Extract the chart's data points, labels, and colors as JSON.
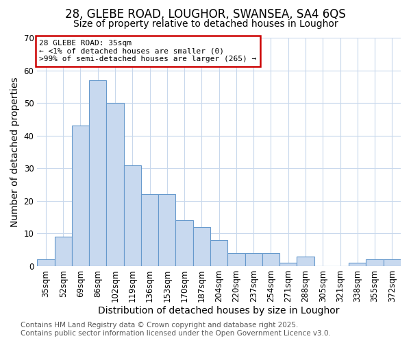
{
  "title1": "28, GLEBE ROAD, LOUGHOR, SWANSEA, SA4 6QS",
  "title2": "Size of property relative to detached houses in Loughor",
  "xlabel": "Distribution of detached houses by size in Loughor",
  "ylabel": "Number of detached properties",
  "categories": [
    "35sqm",
    "52sqm",
    "69sqm",
    "86sqm",
    "102sqm",
    "119sqm",
    "136sqm",
    "153sqm",
    "170sqm",
    "187sqm",
    "204sqm",
    "220sqm",
    "237sqm",
    "254sqm",
    "271sqm",
    "288sqm",
    "305sqm",
    "321sqm",
    "338sqm",
    "355sqm",
    "372sqm"
  ],
  "values": [
    2,
    9,
    43,
    57,
    50,
    31,
    22,
    22,
    14,
    12,
    8,
    4,
    4,
    4,
    1,
    3,
    0,
    0,
    1,
    2,
    2
  ],
  "bar_color": "#c8d9ef",
  "bar_edge_color": "#6699cc",
  "ylim": [
    0,
    70
  ],
  "yticks": [
    0,
    10,
    20,
    30,
    40,
    50,
    60,
    70
  ],
  "annotation_title": "28 GLEBE ROAD: 35sqm",
  "annotation_line1": "← <1% of detached houses are smaller (0)",
  "annotation_line2": ">99% of semi-detached houses are larger (265) →",
  "annotation_box_color": "#ffffff",
  "annotation_border_color": "#cc0000",
  "footer_line1": "Contains HM Land Registry data © Crown copyright and database right 2025.",
  "footer_line2": "Contains public sector information licensed under the Open Government Licence v3.0.",
  "background_color": "#ffffff",
  "grid_color": "#c8d8ec",
  "title_fontsize": 12,
  "subtitle_fontsize": 10,
  "axis_label_fontsize": 10,
  "tick_fontsize": 8.5,
  "footer_fontsize": 7.5
}
